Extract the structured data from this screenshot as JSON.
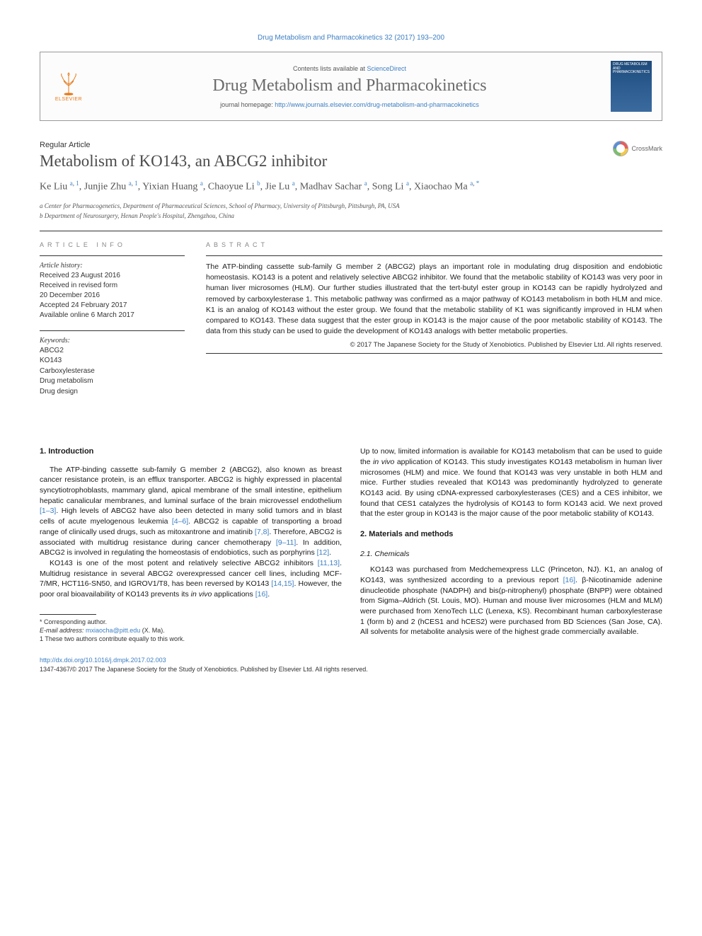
{
  "header": {
    "top_citation": "Drug Metabolism and Pharmacokinetics 32 (2017) 193–200",
    "contents_prefix": "Contents lists available at ",
    "contents_link": "ScienceDirect",
    "journal_title": "Drug Metabolism and Pharmacokinetics",
    "homepage_prefix": "journal homepage: ",
    "homepage_url": "http://www.journals.elsevier.com/drug-metabolism-and-pharmacokinetics",
    "elsevier_label": "ELSEVIER",
    "cover_text": "DRUG METABOLISM AND PHARMACOKINETICS"
  },
  "article": {
    "type": "Regular Article",
    "title": "Metabolism of KO143, an ABCG2 inhibitor",
    "crossmark": "CrossMark",
    "authors_html": "Ke Liu <sup><a>a</a>, <a>1</a></sup>, Junjie Zhu <sup><a>a</a>, <a>1</a></sup>, Yixian Huang <sup><a>a</a></sup>, Chaoyue Li <sup><a>b</a></sup>, Jie Lu <sup><a>a</a></sup>, Madhav Sachar <sup><a>a</a></sup>, Song Li <sup><a>a</a></sup>, Xiaochao Ma <sup><a>a</a>, <a>*</a></sup>",
    "affiliations": [
      "a Center for Pharmacogenetics, Department of Pharmaceutical Sciences, School of Pharmacy, University of Pittsburgh, Pittsburgh, PA, USA",
      "b Department of Neurosurgery, Henan People's Hospital, Zhengzhou, China"
    ]
  },
  "info": {
    "heading": "ARTICLE INFO",
    "history_head": "Article history:",
    "history_lines": [
      "Received 23 August 2016",
      "Received in revised form",
      "20 December 2016",
      "Accepted 24 February 2017",
      "Available online 6 March 2017"
    ],
    "keywords_head": "Keywords:",
    "keywords": [
      "ABCG2",
      "KO143",
      "Carboxylesterase",
      "Drug metabolism",
      "Drug design"
    ]
  },
  "abstract": {
    "heading": "ABSTRACT",
    "text": "The ATP-binding cassette sub-family G member 2 (ABCG2) plays an important role in modulating drug disposition and endobiotic homeostasis. KO143 is a potent and relatively selective ABCG2 inhibitor. We found that the metabolic stability of KO143 was very poor in human liver microsomes (HLM). Our further studies illustrated that the tert-butyl ester group in KO143 can be rapidly hydrolyzed and removed by carboxylesterase 1. This metabolic pathway was confirmed as a major pathway of KO143 metabolism in both HLM and mice. K1 is an analog of KO143 without the ester group. We found that the metabolic stability of K1 was significantly improved in HLM when compared to KO143. These data suggest that the ester group in KO143 is the major cause of the poor metabolic stability of KO143. The data from this study can be used to guide the development of KO143 analogs with better metabolic properties.",
    "copyright": "© 2017 The Japanese Society for the Study of Xenobiotics. Published by Elsevier Ltd. All rights reserved."
  },
  "body": {
    "left": {
      "intro_head": "1. Introduction",
      "p1": "The ATP-binding cassette sub-family G member 2 (ABCG2), also known as breast cancer resistance protein, is an efflux transporter. ABCG2 is highly expressed in placental syncytiotrophoblasts, mammary gland, apical membrane of the small intestine, epithelium hepatic canalicular membranes, and luminal surface of the brain microvessel endothelium [1–3]. High levels of ABCG2 have also been detected in many solid tumors and in blast cells of acute myelogenous leukemia [4–6]. ABCG2 is capable of transporting a broad range of clinically used drugs, such as mitoxantrone and imatinib [7,8]. Therefore, ABCG2 is associated with multidrug resistance during cancer chemotherapy [9–11]. In addition, ABCG2 is involved in regulating the homeostasis of endobiotics, such as porphyrins [12].",
      "p2": "KO143 is one of the most potent and relatively selective ABCG2 inhibitors [11,13]. Multidrug resistance in several ABCG2 overexpressed cancer cell lines, including MCF-7/MR, HCT116-SN50, and IGROV1/T8, has been reversed by KO143 [14,15]. However, the poor oral bioavailability of KO143 prevents its in vivo applications [16].",
      "fn_corresponding": "* Corresponding author.",
      "fn_email_label": "E-mail address:",
      "fn_email": "mxiaocha@pitt.edu",
      "fn_email_name": "(X. Ma).",
      "fn_equal": "1 These two authors contribute equally to this work."
    },
    "right": {
      "p1": "Up to now, limited information is available for KO143 metabolism that can be used to guide the in vivo application of KO143. This study investigates KO143 metabolism in human liver microsomes (HLM) and mice. We found that KO143 was very unstable in both HLM and mice. Further studies revealed that KO143 was predominantly hydrolyzed to generate KO143 acid. By using cDNA-expressed carboxylesterases (CES) and a CES inhibitor, we found that CES1 catalyzes the hydrolysis of KO143 to form KO143 acid. We next proved that the ester group in KO143 is the major cause of the poor metabolic stability of KO143.",
      "methods_head": "2. Materials and methods",
      "chem_head": "2.1. Chemicals",
      "p2": "KO143 was purchased from Medchemexpress LLC (Princeton, NJ). K1, an analog of KO143, was synthesized according to a previous report [16]. β-Nicotinamide adenine dinucleotide phosphate (NADPH) and bis(p-nitrophenyl) phosphate (BNPP) were obtained from Sigma–Aldrich (St. Louis, MO). Human and mouse liver microsomes (HLM and MLM) were purchased from XenoTech LLC (Lenexa, KS). Recombinant human carboxylesterase 1 (form b) and 2 (hCES1 and hCES2) were purchased from BD Sciences (San Jose, CA). All solvents for metabolite analysis were of the highest grade commercially available."
    }
  },
  "footer": {
    "doi": "http://dx.doi.org/10.1016/j.dmpk.2017.02.003",
    "issn_line": "1347-4367/© 2017 The Japanese Society for the Study of Xenobiotics. Published by Elsevier Ltd. All rights reserved."
  },
  "links": {
    "refs": {
      "r1_3": "[1–3]",
      "r4_6": "[4–6]",
      "r7_8": "[7,8]",
      "r9_11": "[9–11]",
      "r11_13": "[11,13]",
      "r12": "[12]",
      "r14_15": "[14,15]",
      "r16": "[16]"
    }
  },
  "colors": {
    "link": "#3d7fc3",
    "elsevier_orange": "#e67817",
    "text_gray": "#4a4a4a"
  }
}
